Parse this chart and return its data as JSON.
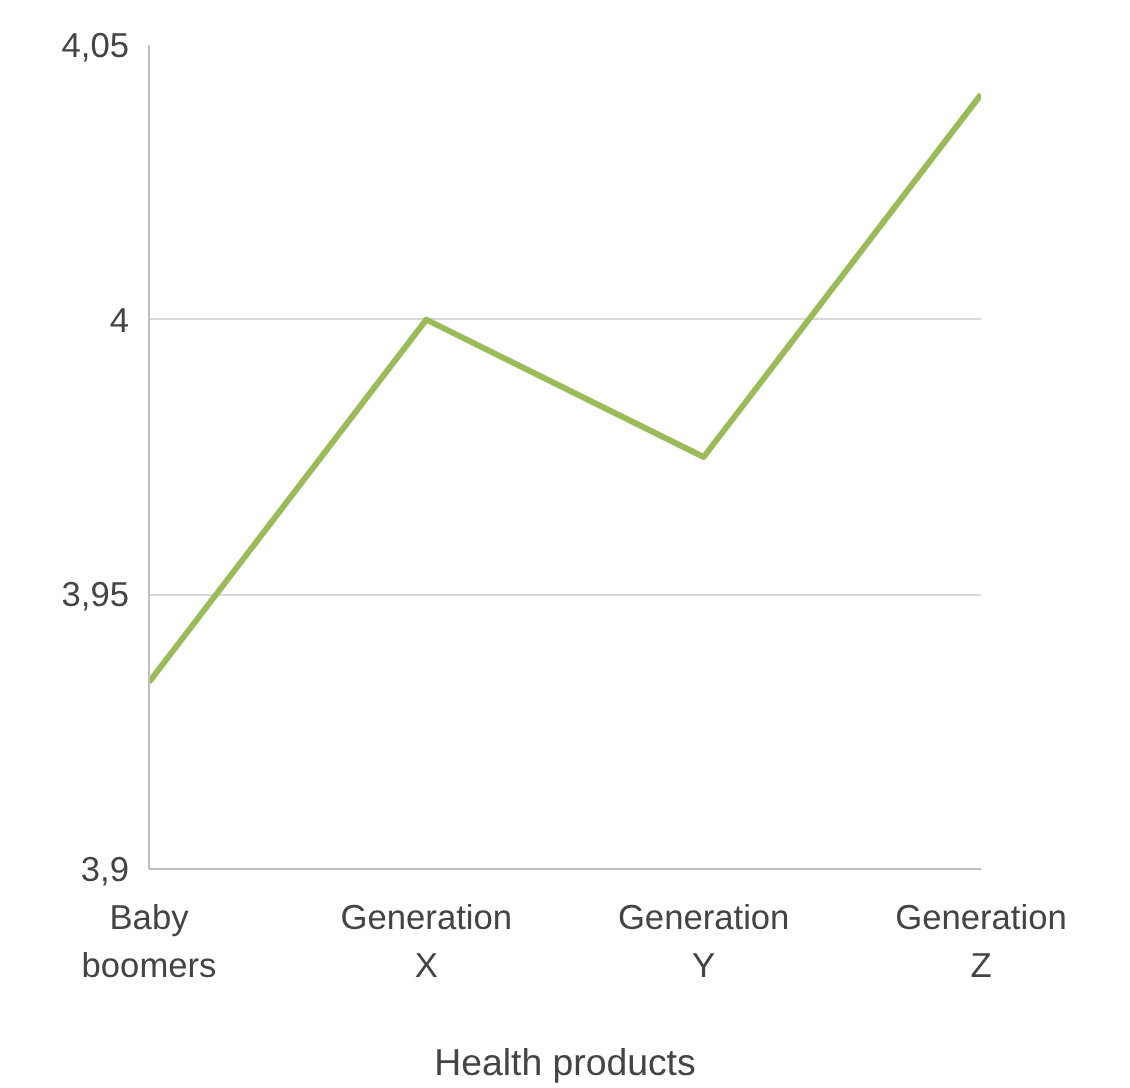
{
  "chart_data": {
    "type": "line",
    "xlabel": "Health products",
    "categories": [
      "Baby boomers",
      "Generation X",
      "Generation Y",
      "Generation Z"
    ],
    "series": [
      {
        "color": "#9bbb59",
        "values": [
          3.934,
          4.0,
          3.975,
          4.041
        ]
      }
    ],
    "ylim": [
      3.9,
      4.05
    ],
    "yticks": [
      {
        "value": 3.9,
        "label": "3,9"
      },
      {
        "value": 3.95,
        "label": "3,95"
      },
      {
        "value": 4.0,
        "label": "4"
      },
      {
        "value": 4.05,
        "label": "4,05"
      }
    ],
    "grid": "y",
    "marker": "none",
    "line_style": "solid"
  }
}
